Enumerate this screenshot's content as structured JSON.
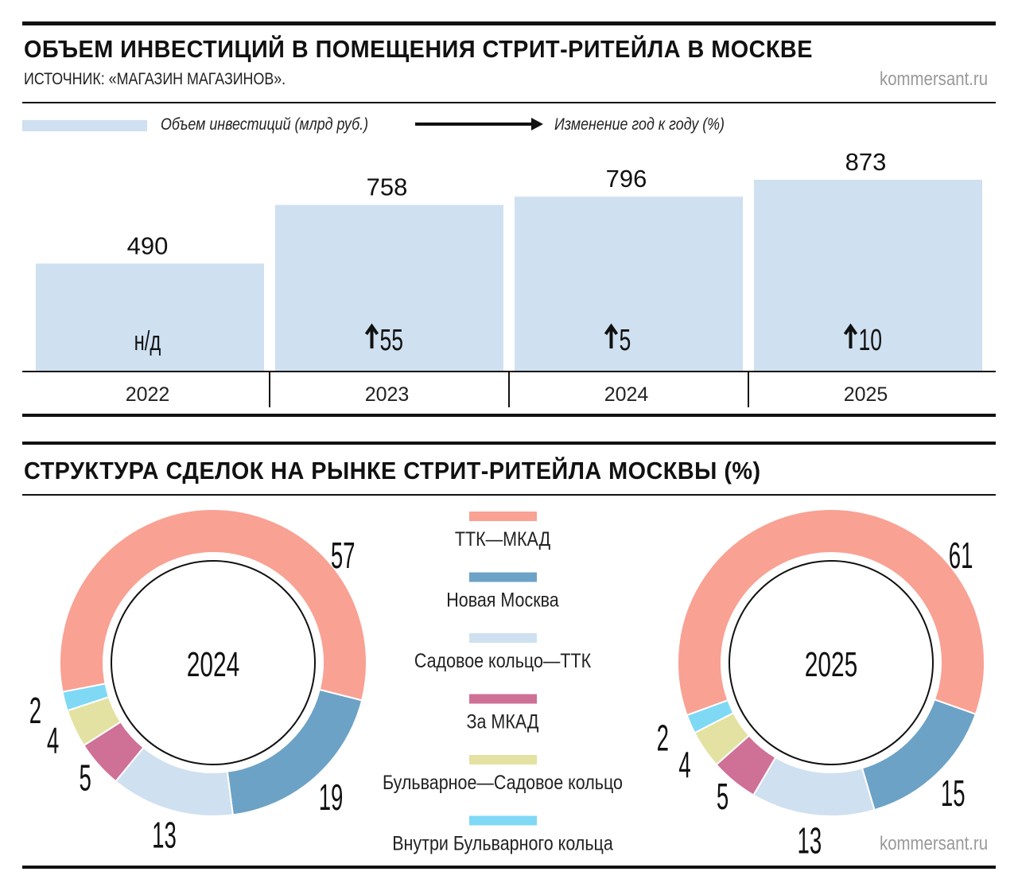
{
  "chart1": {
    "title": "ОБЪЕМ ИНВЕСТИЦИЙ В ПОМЕЩЕНИЯ СТРИТ-РИТЕЙЛА В МОСКВЕ",
    "source": "ИСТОЧНИК: «МАГАЗИН МАГАЗИНОВ».",
    "brand": "kommersant.ru",
    "legend_bar": "Объем инвестиций (млрд руб.)",
    "legend_arrow": "Изменение год к году (%)"
  },
  "chart2": {
    "title": "СТРУКТУРА СДЕЛОК НА РЫНКЕ СТРИТ-РИТЕЙЛА МОСКВЫ (%)",
    "brand": "kommersant.ru"
  },
  "chart_data": [
    {
      "type": "bar",
      "categories": [
        "2022",
        "2023",
        "2024",
        "2025"
      ],
      "values": [
        490,
        758,
        796,
        873
      ],
      "changes": [
        "н/д",
        "55",
        "5",
        "10"
      ],
      "change_up": [
        false,
        true,
        true,
        true
      ],
      "color": "#cfe0f0",
      "ylim": [
        0,
        873
      ]
    },
    {
      "type": "pie",
      "donut": true,
      "legend": [
        {
          "label": "ТТК—МКАД",
          "color": "#f9a193"
        },
        {
          "label": "Новая Москва",
          "color": "#6ca2c6"
        },
        {
          "label": "Садовое кольцо—ТТК",
          "color": "#cfe0f0"
        },
        {
          "label": "За МКАД",
          "color": "#cf7096"
        },
        {
          "label": "Бульварное—Садовое кольцо",
          "color": "#e3e2a2"
        },
        {
          "label": "Внутри Бульварного кольца",
          "color": "#7fd9f5"
        }
      ],
      "charts": [
        {
          "label": "2024",
          "values": [
            57,
            19,
            13,
            5,
            4,
            2
          ]
        },
        {
          "label": "2025",
          "values": [
            61,
            15,
            13,
            5,
            4,
            2
          ]
        }
      ]
    }
  ]
}
